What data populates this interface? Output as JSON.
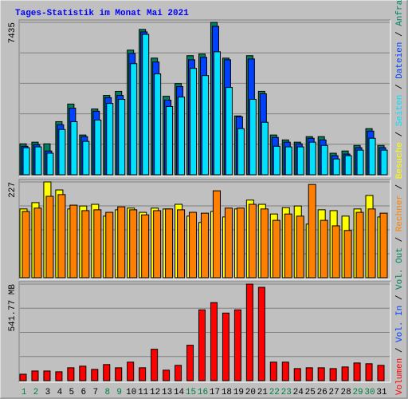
{
  "title": "Tages-Statistik im Monat Mai 2021",
  "legend_separator": " / ",
  "categories": [
    "1",
    "2",
    "3",
    "4",
    "5",
    "6",
    "7",
    "8",
    "9",
    "10",
    "11",
    "12",
    "13",
    "14",
    "15",
    "16",
    "17",
    "18",
    "19",
    "20",
    "21",
    "22",
    "23",
    "24",
    "25",
    "26",
    "27",
    "28",
    "29",
    "30",
    "31"
  ],
  "category_colors": [
    "#008040",
    "#008040",
    "#000000",
    "#000000",
    "#000000",
    "#000000",
    "#000000",
    "#008040",
    "#008040",
    "#000000",
    "#000000",
    "#000000",
    "#000000",
    "#000000",
    "#008040",
    "#008040",
    "#000000",
    "#000000",
    "#000000",
    "#000000",
    "#000000",
    "#008040",
    "#008040",
    "#000000",
    "#000000",
    "#000000",
    "#000000",
    "#000000",
    "#008040",
    "#008040",
    "#000000"
  ],
  "chart_data": [
    {
      "type": "bar",
      "ylim": [
        0,
        7435
      ],
      "yticks": [
        7435
      ],
      "series": [
        {
          "name": "Anfragen",
          "color": "#008060",
          "values": [
            1510,
            1590,
            1510,
            2590,
            3450,
            1940,
            3210,
            3870,
            4070,
            6080,
            7090,
            5690,
            3830,
            4450,
            5810,
            5890,
            7435,
            5690,
            2870,
            5810,
            4070,
            1940,
            1700,
            1590,
            1860,
            1860,
            1050,
            1160,
            1430,
            2250,
            1430
          ]
        },
        {
          "name": "Dateien",
          "color": "#0040ff",
          "values": [
            1390,
            1470,
            1160,
            2440,
            3250,
            1860,
            3100,
            3760,
            3870,
            5920,
            6970,
            5500,
            3640,
            4300,
            5610,
            5730,
            7240,
            5610,
            2830,
            5650,
            3950,
            1820,
            1590,
            1510,
            1780,
            1700,
            930,
            1010,
            1320,
            2130,
            1320
          ]
        },
        {
          "name": "Seiten",
          "color": "#00e0ff",
          "values": [
            1320,
            1360,
            1050,
            2210,
            2590,
            1630,
            2670,
            3480,
            3680,
            5420,
            6850,
            4920,
            3330,
            3790,
            5190,
            4840,
            6000,
            4260,
            2250,
            3680,
            2560,
            1390,
            1360,
            1360,
            1590,
            1430,
            770,
            930,
            1200,
            1780,
            1200
          ]
        }
      ]
    },
    {
      "type": "bar",
      "ylim": [
        0,
        227
      ],
      "yticks": [
        227
      ],
      "series": [
        {
          "name": "Besuche",
          "color": "#ffff00",
          "values": [
            163,
            178,
            227,
            208,
            163,
            170,
            174,
            146,
            161,
            165,
            155,
            165,
            163,
            174,
            146,
            131,
            157,
            144,
            163,
            184,
            174,
            151,
            166,
            170,
            127,
            161,
            159,
            146,
            163,
            195,
            144
          ]
        },
        {
          "name": "Rechner",
          "color": "#ff8000",
          "values": [
            157,
            165,
            193,
            197,
            172,
            159,
            161,
            155,
            168,
            161,
            149,
            159,
            163,
            161,
            155,
            153,
            206,
            165,
            165,
            174,
            163,
            136,
            151,
            146,
            221,
            136,
            123,
            112,
            155,
            163,
            153
          ]
        }
      ]
    },
    {
      "type": "bar",
      "ylim": [
        0,
        541.77
      ],
      "yticks": [
        {
          "value": 541.77,
          "label": "541.77 MB"
        }
      ],
      "series": [
        {
          "name": "Volumen",
          "color": "#ff0000",
          "values": [
            36.1,
            54.2,
            54.2,
            49.7,
            72.2,
            81.3,
            63.2,
            90.3,
            72.2,
            103.8,
            72.2,
            176.1,
            58.7,
            85.8,
            198.7,
            397.3,
            437.9,
            379.2,
            397.3,
            541.77,
            523.7,
            103.8,
            103.8,
            67.7,
            72.2,
            72.2,
            67.7,
            76.8,
            99.3,
            94.8,
            85.8
          ]
        },
        {
          "name": "Vol. In",
          "color": "#0040ff",
          "values": [
            null,
            null,
            null,
            null,
            null,
            null,
            null,
            null,
            null,
            null,
            null,
            null,
            null,
            null,
            null,
            null,
            null,
            null,
            null,
            null,
            null,
            null,
            null,
            null,
            null,
            null,
            null,
            null,
            null,
            null,
            null
          ]
        },
        {
          "name": "Vol. Out",
          "color": "#008060",
          "values": [
            null,
            null,
            null,
            null,
            null,
            null,
            null,
            null,
            null,
            null,
            null,
            null,
            null,
            null,
            null,
            null,
            null,
            null,
            null,
            null,
            null,
            null,
            null,
            null,
            null,
            null,
            null,
            null,
            null,
            null,
            null
          ]
        }
      ]
    }
  ]
}
